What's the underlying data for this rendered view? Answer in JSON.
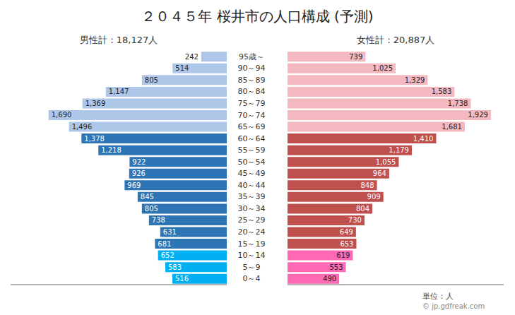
{
  "chart_data": {
    "type": "bar",
    "orientation": "horizontal",
    "title": "２０４５年 桜井市の人口構成 (予測)",
    "categories": [
      "0～4",
      "5～9",
      "10～14",
      "15～19",
      "20～24",
      "25～29",
      "30～34",
      "35～39",
      "40～44",
      "45～49",
      "50～54",
      "55～59",
      "60～64",
      "65～69",
      "70～74",
      "75～79",
      "80～84",
      "85～89",
      "90～94",
      "95歳～"
    ],
    "series": [
      {
        "name": "男性計：18,127人",
        "values": [
          516,
          583,
          652,
          681,
          631,
          738,
          805,
          845,
          969,
          926,
          922,
          1218,
          1378,
          1496,
          1690,
          1369,
          1147,
          805,
          514,
          242
        ],
        "value_labels": [
          "516",
          "583",
          "652",
          "681",
          "631",
          "738",
          "805",
          "845",
          "969",
          "926",
          "922",
          "1,218",
          "1,378",
          "1,496",
          "1,690",
          "1,369",
          "1,147",
          "805",
          "514",
          "242"
        ],
        "colors": [
          "#00b0f0",
          "#00b0f0",
          "#00b0f0",
          "#2e75b6",
          "#2e75b6",
          "#2e75b6",
          "#2e75b6",
          "#2e75b6",
          "#2e75b6",
          "#2e75b6",
          "#2e75b6",
          "#2e75b6",
          "#2e75b6",
          "#aec6e8",
          "#aec6e8",
          "#aec6e8",
          "#aec6e8",
          "#aec6e8",
          "#aec6e8",
          "#aec6e8"
        ]
      },
      {
        "name": "女性計：20,887人",
        "values": [
          490,
          553,
          619,
          653,
          649,
          730,
          804,
          909,
          848,
          964,
          1055,
          1179,
          1410,
          1681,
          1929,
          1738,
          1583,
          1329,
          1025,
          739
        ],
        "value_labels": [
          "490",
          "553",
          "619",
          "653",
          "649",
          "730",
          "804",
          "909",
          "848",
          "964",
          "1,055",
          "1,179",
          "1,410",
          "1,681",
          "1,929",
          "1,738",
          "1,583",
          "1,329",
          "1,025",
          "739"
        ],
        "colors": [
          "#ff69b4",
          "#ff69b4",
          "#ff69b4",
          "#c0504d",
          "#c0504d",
          "#c0504d",
          "#c0504d",
          "#c0504d",
          "#c0504d",
          "#c0504d",
          "#c0504d",
          "#c0504d",
          "#c0504d",
          "#f4b8c1",
          "#f4b8c1",
          "#f4b8c1",
          "#f4b8c1",
          "#f4b8c1",
          "#f4b8c1",
          "#f4b8c1"
        ]
      }
    ],
    "xlim": [
      0,
      2050
    ],
    "tick_labels": false,
    "data_labels": true,
    "grid": false,
    "annotations": [
      "単位：人",
      "© jp.gdfreak.com"
    ]
  }
}
